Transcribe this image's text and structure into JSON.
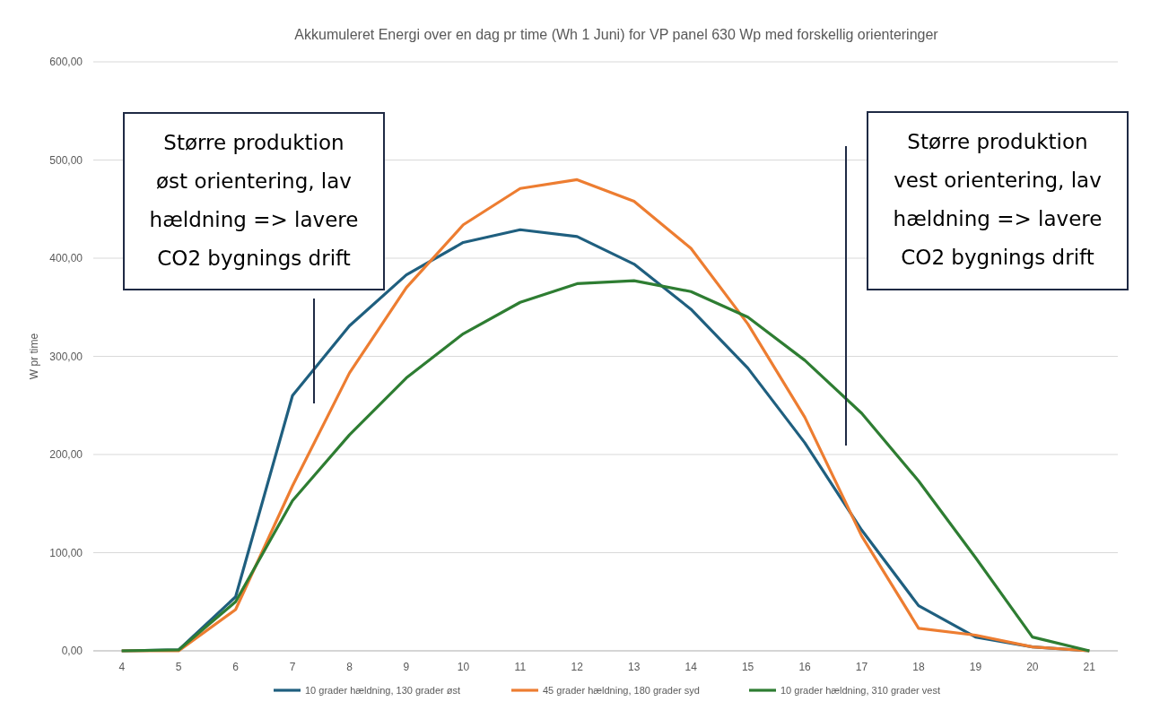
{
  "chart_data": {
    "type": "line",
    "title": "Akkumuleret Energi over en dag pr time (Wh 1 Juni)  for VP panel 630 Wp med forskellig orienteringer",
    "ylabel": "W pr time",
    "x": [
      4,
      5,
      6,
      7,
      8,
      9,
      10,
      11,
      12,
      13,
      14,
      15,
      16,
      17,
      18,
      19,
      20,
      21
    ],
    "xlim": [
      3.5,
      21.5
    ],
    "xticks": [
      4,
      5,
      6,
      7,
      8,
      9,
      10,
      11,
      12,
      13,
      14,
      15,
      16,
      17,
      18,
      19,
      20,
      21
    ],
    "ylim": [
      0,
      600
    ],
    "yticks": [
      {
        "value": 0,
        "label": "0,00"
      },
      {
        "value": 100,
        "label": "100,00"
      },
      {
        "value": 200,
        "label": "200,00"
      },
      {
        "value": 300,
        "label": "300,00"
      },
      {
        "value": 400,
        "label": "400,00"
      },
      {
        "value": 500,
        "label": "500,00"
      },
      {
        "value": 600,
        "label": "600,00"
      }
    ],
    "series": [
      {
        "name": "10 grader hældning, 130 grader øst",
        "color": "#1f5f7f",
        "values": [
          0,
          1,
          55,
          260,
          331,
          383,
          416,
          429,
          422,
          394,
          348,
          288,
          212,
          123,
          46,
          14,
          4,
          0
        ]
      },
      {
        "name": "45 grader hældning, 180 grader syd",
        "color": "#ed7d31",
        "values": [
          0,
          0,
          42,
          168,
          283,
          370,
          434,
          471,
          480,
          458,
          410,
          333,
          238,
          117,
          23,
          16,
          4,
          0
        ]
      },
      {
        "name": "10 grader hældning, 310 grader vest",
        "color": "#2e7d32",
        "values": [
          0,
          1,
          50,
          153,
          220,
          278,
          323,
          355,
          374,
          377,
          366,
          340,
          296,
          242,
          173,
          95,
          14,
          0
        ]
      }
    ],
    "annotations": [
      "Større produktion\nøst orientering, lav\nhældning => lavere\nCO2 bygnings drift",
      "Større produktion\nvest orientering, lav\nhældning => lavere\nCO2 bygnings drift"
    ],
    "grid": "y",
    "legend": "bottom",
    "marker": "none",
    "line_style": "solid"
  }
}
